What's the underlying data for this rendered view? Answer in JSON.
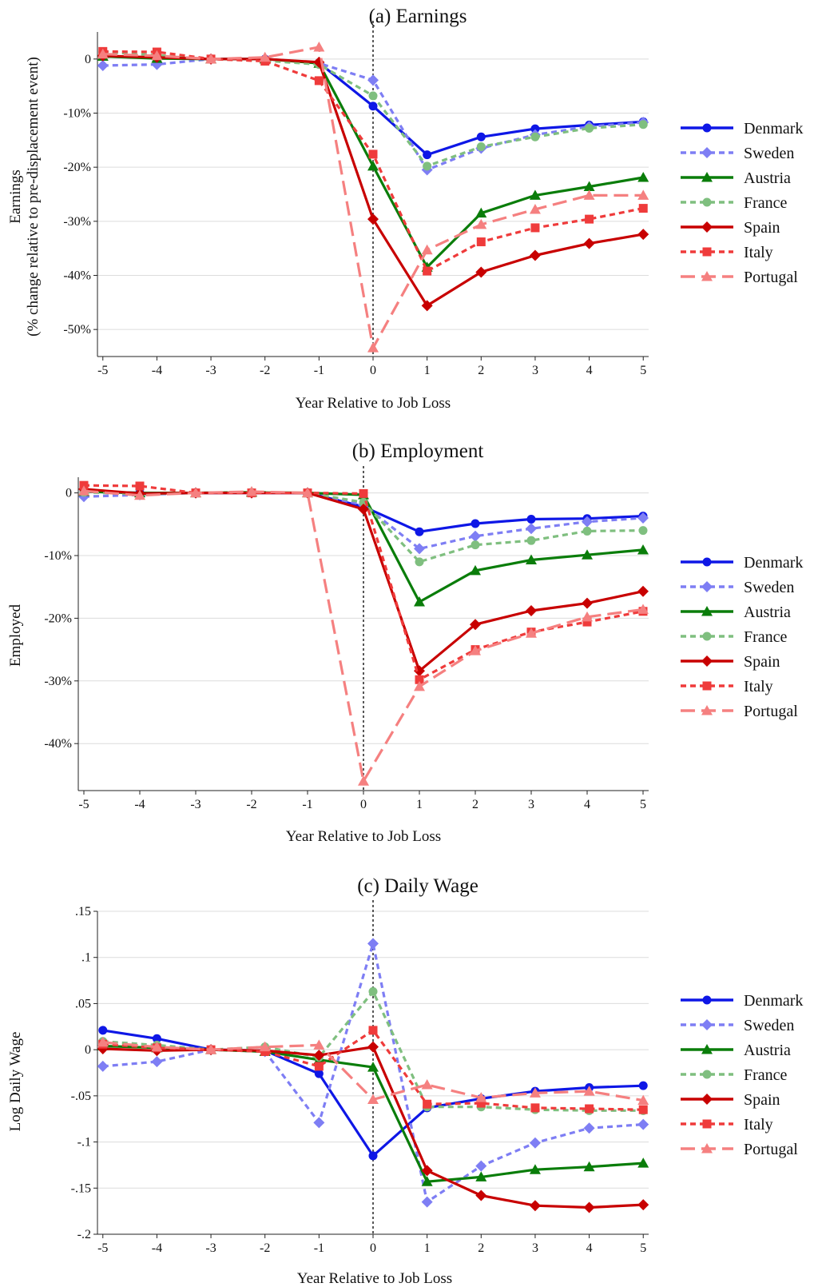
{
  "chart_data": [
    {
      "type": "line",
      "title": "(a) Earnings",
      "xlabel": "Year Relative to Job Loss",
      "ylabel": "Earnings",
      "ylabel2": "(% change relative to pre-displacement event)",
      "x": [
        -5,
        -4,
        -3,
        -2,
        -1,
        0,
        1,
        2,
        3,
        4,
        5
      ],
      "x_tick_labels": [
        "-5",
        "-4",
        "-3",
        "-2",
        "-1",
        "0",
        "1",
        "2",
        "3",
        "4",
        "5"
      ],
      "ylim": [
        -55,
        5
      ],
      "y_ticks": [
        0,
        -10,
        -20,
        -30,
        -40,
        -50
      ],
      "y_tick_labels": [
        "0",
        "-10%",
        "-20%",
        "-30%",
        "-40%",
        "-50%"
      ],
      "vline_x": 0,
      "grid": "horizontal",
      "legend_position": "right",
      "series": [
        {
          "name": "Denmark",
          "values": [
            0.5,
            0.2,
            0,
            0,
            -0.7,
            -8.7,
            -17.7,
            -14.4,
            -12.9,
            -12.2,
            -11.6
          ]
        },
        {
          "name": "Sweden",
          "values": [
            -1.2,
            -1.0,
            0,
            0,
            -0.8,
            -3.9,
            -20.5,
            -16.5,
            -14.0,
            -12.5,
            -11.7
          ]
        },
        {
          "name": "Austria",
          "values": [
            0.5,
            0.1,
            0,
            0,
            -0.8,
            -19.8,
            -38.5,
            -28.5,
            -25.2,
            -23.6,
            -21.9
          ]
        },
        {
          "name": "France",
          "values": [
            1.3,
            0.7,
            0,
            -0.3,
            -1.0,
            -6.8,
            -19.8,
            -16.2,
            -14.4,
            -12.8,
            -12.1
          ]
        },
        {
          "name": "Spain",
          "values": [
            0.6,
            0.3,
            0,
            0,
            -0.6,
            -29.6,
            -45.6,
            -39.4,
            -36.3,
            -34.1,
            -32.4
          ]
        },
        {
          "name": "Italy",
          "values": [
            1.4,
            1.3,
            0,
            -0.4,
            -4.0,
            -17.6,
            -39.2,
            -33.8,
            -31.2,
            -29.6,
            -27.6
          ]
        },
        {
          "name": "Portugal",
          "values": [
            0.9,
            0.6,
            0,
            0.3,
            2.2,
            -53.4,
            -35.3,
            -30.6,
            -27.8,
            -25.2,
            -25.2
          ]
        }
      ]
    },
    {
      "type": "line",
      "title": "(b) Employment",
      "xlabel": "Year Relative to Job Loss",
      "ylabel": "Employed",
      "x": [
        -5,
        -4,
        -3,
        -2,
        -1,
        0,
        1,
        2,
        3,
        4,
        5
      ],
      "x_tick_labels": [
        "-5",
        "-4",
        "-3",
        "-2",
        "-1",
        "0",
        "1",
        "2",
        "3",
        "4",
        "5"
      ],
      "ylim": [
        -47.5,
        2.5
      ],
      "y_ticks": [
        0,
        -10,
        -20,
        -30,
        -40
      ],
      "y_tick_labels": [
        "0",
        "-10%",
        "-20%",
        "-30%",
        "-40%"
      ],
      "vline_x": 0,
      "grid": "horizontal",
      "legend_position": "right",
      "series": [
        {
          "name": "Denmark",
          "values": [
            0.2,
            0,
            0,
            0,
            0,
            -2.2,
            -6.2,
            -4.9,
            -4.2,
            -4.1,
            -3.7
          ]
        },
        {
          "name": "Sweden",
          "values": [
            -0.6,
            -0.3,
            0,
            0,
            0,
            -1.9,
            -8.9,
            -6.9,
            -5.7,
            -4.6,
            -4.0
          ]
        },
        {
          "name": "Austria",
          "values": [
            0.2,
            0,
            0,
            0.1,
            0,
            -0.3,
            -17.4,
            -12.4,
            -10.7,
            -9.9,
            -9.1
          ]
        },
        {
          "name": "France",
          "values": [
            0.1,
            -0.2,
            0,
            0.1,
            0,
            -1.5,
            -11.0,
            -8.3,
            -7.6,
            -6.1,
            -6.0
          ]
        },
        {
          "name": "Spain",
          "values": [
            0.6,
            -0.1,
            0,
            0,
            0,
            -2.6,
            -28.4,
            -21.0,
            -18.8,
            -17.6,
            -15.7
          ]
        },
        {
          "name": "Italy",
          "values": [
            1.2,
            1.1,
            0,
            0,
            0,
            -0.1,
            -29.8,
            -25.0,
            -22.2,
            -20.6,
            -18.9
          ]
        },
        {
          "name": "Portugal",
          "values": [
            0.3,
            -0.4,
            0,
            0.2,
            0,
            -46.0,
            -30.9,
            -25.2,
            -22.4,
            -19.8,
            -18.6
          ]
        }
      ]
    },
    {
      "type": "line",
      "title": "(c) Daily Wage",
      "xlabel": "Year Relative to Job Loss",
      "ylabel": "Log Daily Wage",
      "x": [
        -5,
        -4,
        -3,
        -2,
        -1,
        0,
        1,
        2,
        3,
        4,
        5
      ],
      "x_tick_labels": [
        "-5",
        "-4",
        "-3",
        "-2",
        "-1",
        "0",
        "1",
        "2",
        "3",
        "4",
        "5"
      ],
      "ylim": [
        -0.2,
        0.15
      ],
      "y_ticks": [
        0.15,
        0.1,
        0.05,
        0,
        -0.05,
        -0.1,
        -0.15,
        -0.2
      ],
      "y_tick_labels": [
        ".15",
        ".1",
        ".05",
        "0",
        "-.05",
        "-.1",
        "-.15",
        "-.2"
      ],
      "vline_x": 0,
      "grid": "horizontal",
      "legend_position": "right",
      "series": [
        {
          "name": "Denmark",
          "values": [
            0.021,
            0.012,
            0,
            -0.001,
            -0.026,
            -0.115,
            -0.063,
            -0.053,
            -0.045,
            -0.041,
            -0.039
          ]
        },
        {
          "name": "Sweden",
          "values": [
            -0.018,
            -0.013,
            0,
            -0.002,
            -0.079,
            0.115,
            -0.165,
            -0.126,
            -0.101,
            -0.085,
            -0.081
          ]
        },
        {
          "name": "Austria",
          "values": [
            0.004,
            0.002,
            0,
            -0.002,
            -0.011,
            -0.019,
            -0.143,
            -0.138,
            -0.13,
            -0.127,
            -0.123
          ]
        },
        {
          "name": "France",
          "values": [
            0.009,
            0.005,
            0,
            0.003,
            -0.008,
            0.063,
            -0.062,
            -0.062,
            -0.065,
            -0.066,
            -0.066
          ]
        },
        {
          "name": "Spain",
          "values": [
            0.001,
            -0.001,
            0,
            -0.001,
            -0.006,
            0.003,
            -0.131,
            -0.158,
            -0.169,
            -0.171,
            -0.168
          ]
        },
        {
          "name": "Italy",
          "values": [
            0.006,
            0.002,
            0,
            -0.002,
            -0.018,
            0.021,
            -0.059,
            -0.058,
            -0.063,
            -0.064,
            -0.065
          ]
        },
        {
          "name": "Portugal",
          "values": [
            0.008,
            0.003,
            0,
            0.003,
            0.005,
            -0.054,
            -0.038,
            -0.052,
            -0.047,
            -0.045,
            -0.055
          ]
        }
      ]
    }
  ],
  "series_styles": [
    {
      "name": "Denmark",
      "color": "#0e17e6",
      "dash": "solid",
      "marker": "circle"
    },
    {
      "name": "Sweden",
      "color": "#7e7ef4",
      "dash": "short-dash",
      "marker": "diamond"
    },
    {
      "name": "Austria",
      "color": "#0a7d0a",
      "dash": "solid",
      "marker": "triangle"
    },
    {
      "name": "France",
      "color": "#7fbf7f",
      "dash": "short-dash",
      "marker": "circle"
    },
    {
      "name": "Spain",
      "color": "#c80000",
      "dash": "solid",
      "marker": "diamond"
    },
    {
      "name": "Italy",
      "color": "#ef3b3b",
      "dash": "short-dash",
      "marker": "square"
    },
    {
      "name": "Portugal",
      "color": "#f58080",
      "dash": "long-dash",
      "marker": "triangle"
    }
  ]
}
